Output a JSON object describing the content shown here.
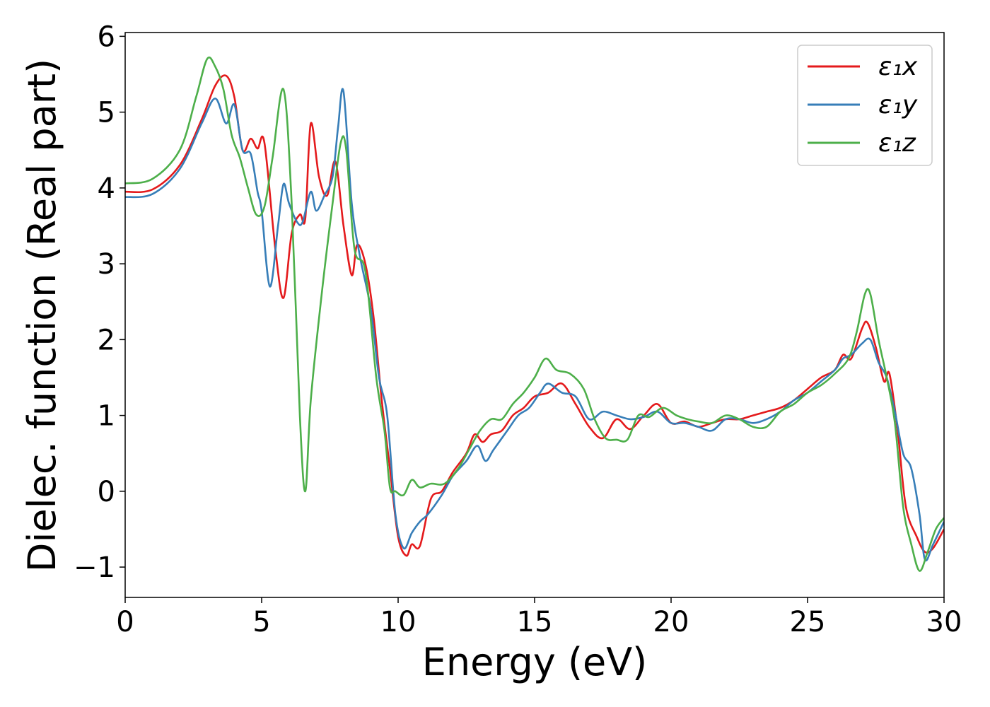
{
  "chart_data": {
    "type": "line",
    "xlabel": "Energy (eV)",
    "ylabel": "Dielec. function (Real part)",
    "xlim": [
      0,
      30
    ],
    "ylim": [
      -1.4,
      6.05
    ],
    "xticks": [
      0,
      5,
      10,
      15,
      20,
      25,
      30
    ],
    "xtick_labels": [
      "0",
      "5",
      "10",
      "15",
      "20",
      "25",
      "30"
    ],
    "yticks": [
      -1,
      0,
      1,
      2,
      3,
      4,
      5,
      6
    ],
    "ytick_labels": [
      "−1",
      "0",
      "1",
      "2",
      "3",
      "4",
      "5",
      "6"
    ],
    "grid": false,
    "legend_position": "top-right",
    "series": [
      {
        "name": "ε₁x",
        "color": "#e41a1c",
        "points": [
          [
            0,
            3.95
          ],
          [
            1,
            3.98
          ],
          [
            2,
            4.3
          ],
          [
            2.8,
            4.9
          ],
          [
            3.3,
            5.35
          ],
          [
            3.7,
            5.48
          ],
          [
            4.0,
            5.2
          ],
          [
            4.3,
            4.5
          ],
          [
            4.6,
            4.65
          ],
          [
            4.85,
            4.52
          ],
          [
            5.1,
            4.6
          ],
          [
            5.5,
            3.2
          ],
          [
            5.8,
            2.55
          ],
          [
            6.1,
            3.4
          ],
          [
            6.4,
            3.65
          ],
          [
            6.6,
            3.6
          ],
          [
            6.8,
            4.85
          ],
          [
            7.1,
            4.15
          ],
          [
            7.4,
            3.9
          ],
          [
            7.7,
            4.35
          ],
          [
            8.0,
            3.5
          ],
          [
            8.3,
            2.85
          ],
          [
            8.5,
            3.25
          ],
          [
            8.8,
            3.0
          ],
          [
            9.1,
            2.3
          ],
          [
            9.4,
            1.2
          ],
          [
            9.7,
            0.3
          ],
          [
            10.0,
            -0.6
          ],
          [
            10.3,
            -0.85
          ],
          [
            10.5,
            -0.7
          ],
          [
            10.8,
            -0.72
          ],
          [
            11.2,
            -0.1
          ],
          [
            11.6,
            0.0
          ],
          [
            12.0,
            0.25
          ],
          [
            12.5,
            0.5
          ],
          [
            12.8,
            0.75
          ],
          [
            13.1,
            0.65
          ],
          [
            13.4,
            0.75
          ],
          [
            13.8,
            0.8
          ],
          [
            14.2,
            1.0
          ],
          [
            14.6,
            1.1
          ],
          [
            15.0,
            1.25
          ],
          [
            15.5,
            1.3
          ],
          [
            16.0,
            1.42
          ],
          [
            16.5,
            1.15
          ],
          [
            17.0,
            0.85
          ],
          [
            17.5,
            0.7
          ],
          [
            18.0,
            0.95
          ],
          [
            18.5,
            0.82
          ],
          [
            19.0,
            1.0
          ],
          [
            19.5,
            1.15
          ],
          [
            20.0,
            0.9
          ],
          [
            20.5,
            0.92
          ],
          [
            21.0,
            0.85
          ],
          [
            21.5,
            0.9
          ],
          [
            22.0,
            0.95
          ],
          [
            22.5,
            0.95
          ],
          [
            23.0,
            1.0
          ],
          [
            23.5,
            1.05
          ],
          [
            24.0,
            1.1
          ],
          [
            24.5,
            1.2
          ],
          [
            25.0,
            1.35
          ],
          [
            25.5,
            1.5
          ],
          [
            26.0,
            1.6
          ],
          [
            26.3,
            1.8
          ],
          [
            26.6,
            1.75
          ],
          [
            27.0,
            2.15
          ],
          [
            27.2,
            2.22
          ],
          [
            27.5,
            1.9
          ],
          [
            27.8,
            1.45
          ],
          [
            28.0,
            1.55
          ],
          [
            28.3,
            0.8
          ],
          [
            28.6,
            -0.2
          ],
          [
            29.0,
            -0.6
          ],
          [
            29.3,
            -0.8
          ],
          [
            29.6,
            -0.75
          ],
          [
            30.0,
            -0.5
          ]
        ]
      },
      {
        "name": "ε₁y",
        "color": "#377eb8",
        "points": [
          [
            0,
            3.88
          ],
          [
            1,
            3.92
          ],
          [
            2,
            4.25
          ],
          [
            2.8,
            4.85
          ],
          [
            3.3,
            5.18
          ],
          [
            3.7,
            4.85
          ],
          [
            4.0,
            5.1
          ],
          [
            4.3,
            4.5
          ],
          [
            4.6,
            4.45
          ],
          [
            4.85,
            3.95
          ],
          [
            5.0,
            3.7
          ],
          [
            5.3,
            2.7
          ],
          [
            5.6,
            3.5
          ],
          [
            5.8,
            4.05
          ],
          [
            6.0,
            3.8
          ],
          [
            6.3,
            3.55
          ],
          [
            6.5,
            3.55
          ],
          [
            6.8,
            3.95
          ],
          [
            7.0,
            3.7
          ],
          [
            7.3,
            3.9
          ],
          [
            7.6,
            4.15
          ],
          [
            7.8,
            4.8
          ],
          [
            8.0,
            5.27
          ],
          [
            8.3,
            3.8
          ],
          [
            8.6,
            3.1
          ],
          [
            9.0,
            2.4
          ],
          [
            9.3,
            1.5
          ],
          [
            9.6,
            1.0
          ],
          [
            9.9,
            -0.3
          ],
          [
            10.2,
            -0.75
          ],
          [
            10.5,
            -0.55
          ],
          [
            10.8,
            -0.4
          ],
          [
            11.1,
            -0.3
          ],
          [
            11.6,
            -0.05
          ],
          [
            12.0,
            0.2
          ],
          [
            12.5,
            0.4
          ],
          [
            12.9,
            0.6
          ],
          [
            13.2,
            0.4
          ],
          [
            13.5,
            0.55
          ],
          [
            14.0,
            0.8
          ],
          [
            14.4,
            1.0
          ],
          [
            14.8,
            1.1
          ],
          [
            15.2,
            1.3
          ],
          [
            15.5,
            1.42
          ],
          [
            16.0,
            1.3
          ],
          [
            16.5,
            1.25
          ],
          [
            17.0,
            0.95
          ],
          [
            17.5,
            1.05
          ],
          [
            18.0,
            1.0
          ],
          [
            18.5,
            0.95
          ],
          [
            19.0,
            0.98
          ],
          [
            19.5,
            1.05
          ],
          [
            20.0,
            0.9
          ],
          [
            20.5,
            0.9
          ],
          [
            21.0,
            0.85
          ],
          [
            21.5,
            0.8
          ],
          [
            22.0,
            0.95
          ],
          [
            22.5,
            0.95
          ],
          [
            23.0,
            0.9
          ],
          [
            23.5,
            0.95
          ],
          [
            24.0,
            1.05
          ],
          [
            24.5,
            1.2
          ],
          [
            25.0,
            1.3
          ],
          [
            25.5,
            1.45
          ],
          [
            26.0,
            1.6
          ],
          [
            26.3,
            1.75
          ],
          [
            26.6,
            1.8
          ],
          [
            27.0,
            1.95
          ],
          [
            27.3,
            2.0
          ],
          [
            27.6,
            1.7
          ],
          [
            27.9,
            1.5
          ],
          [
            28.2,
            1.05
          ],
          [
            28.5,
            0.5
          ],
          [
            28.8,
            0.3
          ],
          [
            29.1,
            -0.3
          ],
          [
            29.3,
            -0.9
          ],
          [
            29.6,
            -0.7
          ],
          [
            30.0,
            -0.4
          ]
        ]
      },
      {
        "name": "ε₁z",
        "color": "#4daf4a",
        "points": [
          [
            0,
            4.06
          ],
          [
            1,
            4.12
          ],
          [
            2,
            4.5
          ],
          [
            2.6,
            5.2
          ],
          [
            3.0,
            5.7
          ],
          [
            3.3,
            5.6
          ],
          [
            3.6,
            5.3
          ],
          [
            3.9,
            4.7
          ],
          [
            4.2,
            4.4
          ],
          [
            4.5,
            4.0
          ],
          [
            4.8,
            3.65
          ],
          [
            5.1,
            3.75
          ],
          [
            5.4,
            4.4
          ],
          [
            5.8,
            5.3
          ],
          [
            6.1,
            3.8
          ],
          [
            6.4,
            1.0
          ],
          [
            6.6,
            0.0
          ],
          [
            6.8,
            1.2
          ],
          [
            7.2,
            2.6
          ],
          [
            7.6,
            3.8
          ],
          [
            7.9,
            4.6
          ],
          [
            8.1,
            4.5
          ],
          [
            8.4,
            3.2
          ],
          [
            8.8,
            2.9
          ],
          [
            9.2,
            1.5
          ],
          [
            9.5,
            0.8
          ],
          [
            9.7,
            0.05
          ],
          [
            9.9,
            0.0
          ],
          [
            10.2,
            -0.05
          ],
          [
            10.5,
            0.15
          ],
          [
            10.8,
            0.05
          ],
          [
            11.2,
            0.1
          ],
          [
            11.7,
            0.1
          ],
          [
            12.2,
            0.3
          ],
          [
            12.6,
            0.55
          ],
          [
            13.0,
            0.8
          ],
          [
            13.4,
            0.95
          ],
          [
            13.8,
            0.95
          ],
          [
            14.2,
            1.15
          ],
          [
            14.6,
            1.3
          ],
          [
            15.0,
            1.5
          ],
          [
            15.4,
            1.75
          ],
          [
            15.8,
            1.6
          ],
          [
            16.3,
            1.55
          ],
          [
            16.8,
            1.35
          ],
          [
            17.2,
            0.95
          ],
          [
            17.6,
            0.7
          ],
          [
            18.0,
            0.68
          ],
          [
            18.4,
            0.68
          ],
          [
            18.8,
            1.0
          ],
          [
            19.2,
            0.98
          ],
          [
            19.7,
            1.1
          ],
          [
            20.2,
            1.0
          ],
          [
            20.6,
            0.95
          ],
          [
            21.0,
            0.92
          ],
          [
            21.5,
            0.9
          ],
          [
            22.0,
            1.0
          ],
          [
            22.5,
            0.95
          ],
          [
            23.0,
            0.85
          ],
          [
            23.5,
            0.85
          ],
          [
            24.0,
            1.05
          ],
          [
            24.5,
            1.15
          ],
          [
            25.0,
            1.3
          ],
          [
            25.5,
            1.4
          ],
          [
            26.0,
            1.55
          ],
          [
            26.5,
            1.75
          ],
          [
            26.8,
            2.1
          ],
          [
            27.1,
            2.6
          ],
          [
            27.3,
            2.6
          ],
          [
            27.6,
            2.0
          ],
          [
            27.9,
            1.5
          ],
          [
            28.2,
            0.9
          ],
          [
            28.5,
            -0.2
          ],
          [
            28.8,
            -0.7
          ],
          [
            29.1,
            -1.05
          ],
          [
            29.4,
            -0.8
          ],
          [
            29.7,
            -0.5
          ],
          [
            30.0,
            -0.35
          ]
        ]
      }
    ]
  }
}
